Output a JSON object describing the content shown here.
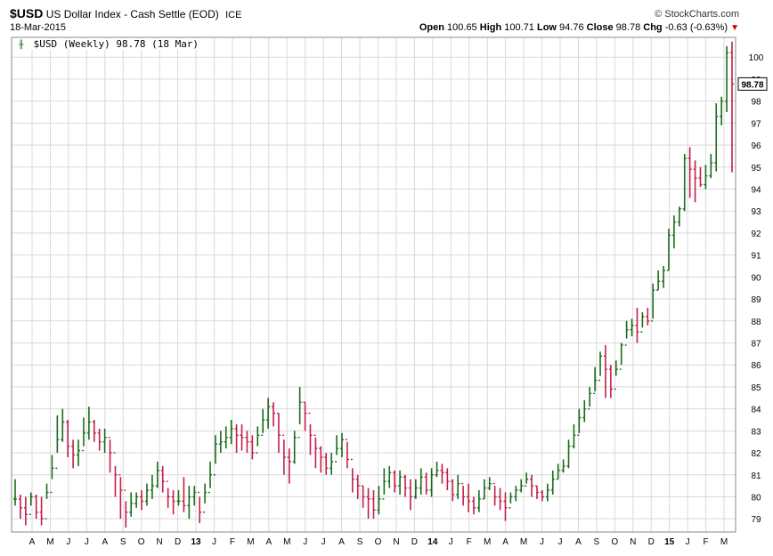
{
  "header": {
    "symbol": "$USD",
    "name": "US Dollar Index - Cash Settle (EOD)",
    "exchange": "ICE",
    "date": "18-Mar-2015",
    "source": "© StockCharts.com",
    "open_label": "Open",
    "open": "100.65",
    "high_label": "High",
    "high": "100.71",
    "low_label": "Low",
    "low": "94.76",
    "close_label": "Close",
    "close": "98.78",
    "chg_label": "Chg",
    "chg": "-0.63 (-0.63%)"
  },
  "legend": {
    "text": "$USD (Weekly) 98.78 (18 Mar)"
  },
  "last_price_tag": "98.78",
  "colors": {
    "up": "#1a6b1a",
    "down": "#c41e4a",
    "grid": "#d9d9d9"
  },
  "chart_data": {
    "type": "ohlc",
    "series_name": "$USD (Weekly)",
    "ylim": [
      78.4,
      100.9
    ],
    "y_ticks": [
      79,
      80,
      81,
      82,
      83,
      84,
      85,
      86,
      87,
      88,
      89,
      90,
      91,
      92,
      93,
      94,
      95,
      96,
      97,
      98,
      99,
      100
    ],
    "x_labels": [
      "A",
      "M",
      "J",
      "J",
      "A",
      "S",
      "O",
      "N",
      "D",
      "13",
      "J",
      "F",
      "M",
      "A",
      "M",
      "J",
      "J",
      "A",
      "S",
      "O",
      "N",
      "D",
      "14",
      "J",
      "F",
      "M",
      "A",
      "M",
      "J",
      "J",
      "A",
      "S",
      "O",
      "N",
      "D",
      "15",
      "J",
      "F",
      "M"
    ],
    "year_labels": [
      "13",
      "14",
      "15"
    ],
    "closes": [
      79.9,
      79.5,
      79.2,
      80.0,
      79.3,
      79.0,
      80.2,
      81.3,
      82.6,
      83.4,
      82.3,
      81.9,
      82.1,
      82.9,
      83.4,
      82.9,
      82.5,
      82.7,
      82.0,
      81.0,
      80.3,
      79.3,
      79.7,
      80.0,
      79.8,
      80.3,
      80.5,
      81.2,
      80.7,
      80.0,
      79.8,
      79.8,
      79.6,
      80.0,
      80.2,
      79.3,
      80.2,
      81.0,
      82.4,
      82.5,
      82.7,
      83.1,
      82.8,
      82.7,
      82.5,
      82.0,
      82.8,
      83.5,
      84.1,
      83.8,
      82.8,
      81.8,
      81.6,
      82.7,
      84.3,
      83.8,
      82.8,
      82.2,
      81.8,
      81.3,
      81.6,
      82.2,
      82.6,
      81.7,
      80.8,
      80.5,
      80.0,
      79.9,
      79.4,
      79.9,
      80.7,
      81.1,
      80.5,
      80.9,
      80.4,
      80.0,
      80.4,
      80.9,
      80.3,
      81.0,
      81.2,
      81.1,
      80.7,
      80.1,
      80.6,
      80.0,
      79.8,
      79.5,
      79.9,
      80.4,
      80.6,
      80.0,
      79.8,
      79.5,
      80.0,
      80.3,
      80.5,
      80.8,
      80.5,
      80.2,
      80.0,
      80.3,
      80.8,
      81.2,
      81.4,
      82.3,
      82.8,
      83.6,
      84.0,
      84.7,
      85.3,
      86.4,
      85.8,
      84.9,
      85.8,
      86.9,
      87.6,
      87.8,
      87.5,
      88.2,
      88.0,
      89.4,
      89.8,
      90.3,
      91.9,
      92.5,
      93.1,
      95.4,
      94.9,
      94.5,
      94.2,
      94.6,
      95.2,
      97.3,
      98.0,
      100.2,
      98.78
    ],
    "highs": [
      80.8,
      80.1,
      80.0,
      80.2,
      80.1,
      80.0,
      80.6,
      81.9,
      83.7,
      84.0,
      83.5,
      82.6,
      82.6,
      83.6,
      84.1,
      83.5,
      83.1,
      83.1,
      82.6,
      81.4,
      80.9,
      79.8,
      80.2,
      80.2,
      80.3,
      80.6,
      81.0,
      81.6,
      81.4,
      80.4,
      80.3,
      80.3,
      80.9,
      80.5,
      80.5,
      80.0,
      80.6,
      81.6,
      82.8,
      83.0,
      83.2,
      83.5,
      83.3,
      83.3,
      83.0,
      82.8,
      83.2,
      84.0,
      84.5,
      84.3,
      83.8,
      82.6,
      82.2,
      83.0,
      85.0,
      84.3,
      83.3,
      82.7,
      82.3,
      82.0,
      82.0,
      82.8,
      82.9,
      82.5,
      81.3,
      81.0,
      80.5,
      80.4,
      80.3,
      80.5,
      81.3,
      81.4,
      81.2,
      81.2,
      81.0,
      80.8,
      80.8,
      81.3,
      81.1,
      81.3,
      81.6,
      81.5,
      81.3,
      80.8,
      81.0,
      80.5,
      80.6,
      80.0,
      80.3,
      80.8,
      80.9,
      80.5,
      80.4,
      80.2,
      80.2,
      80.5,
      80.8,
      81.1,
      81.0,
      80.5,
      80.3,
      80.6,
      81.2,
      81.5,
      81.7,
      82.6,
      83.3,
      84.0,
      84.4,
      85.0,
      85.9,
      86.6,
      86.9,
      86.0,
      86.2,
      87.0,
      88.0,
      88.1,
      88.6,
      88.4,
      88.6,
      89.7,
      90.3,
      90.5,
      92.2,
      92.8,
      93.2,
      95.6,
      95.9,
      95.3,
      95.0,
      95.1,
      95.6,
      97.9,
      98.2,
      100.5,
      100.71
    ],
    "lows": [
      79.6,
      79.0,
      78.7,
      79.6,
      79.0,
      78.7,
      79.9,
      80.8,
      82.0,
      82.5,
      81.8,
      81.3,
      81.4,
      82.3,
      82.6,
      82.5,
      82.1,
      82.0,
      81.1,
      80.0,
      79.0,
      78.6,
      79.1,
      79.5,
      79.4,
      79.6,
      79.9,
      80.4,
      80.2,
      79.5,
      79.2,
      79.6,
      79.3,
      79.0,
      79.6,
      78.8,
      79.7,
      80.4,
      81.5,
      82.0,
      82.2,
      82.4,
      82.0,
      82.1,
      82.0,
      81.7,
      82.3,
      82.9,
      83.1,
      83.2,
      82.0,
      81.0,
      80.6,
      81.5,
      83.3,
      83.0,
      81.9,
      81.3,
      81.1,
      81.0,
      81.0,
      81.9,
      81.8,
      81.3,
      80.2,
      79.9,
      79.5,
      79.0,
      79.0,
      79.2,
      80.1,
      80.4,
      80.2,
      80.1,
      80.0,
      79.4,
      79.9,
      80.1,
      80.1,
      80.0,
      80.9,
      80.6,
      80.3,
      79.8,
      79.9,
      79.6,
      79.3,
      79.2,
      79.3,
      79.9,
      80.3,
      79.6,
      79.4,
      78.9,
      79.7,
      79.8,
      80.2,
      80.6,
      80.0,
      79.9,
      79.8,
      79.8,
      80.1,
      80.8,
      81.1,
      81.3,
      82.2,
      82.9,
      83.4,
      84.1,
      84.8,
      85.5,
      84.5,
      84.5,
      85.5,
      86.0,
      87.2,
      87.3,
      87.0,
      87.7,
      87.8,
      88.1,
      89.4,
      89.5,
      90.3,
      91.3,
      92.3,
      93.0,
      93.6,
      93.4,
      94.1,
      94.0,
      94.5,
      94.8,
      96.9,
      97.5,
      94.76
    ]
  }
}
